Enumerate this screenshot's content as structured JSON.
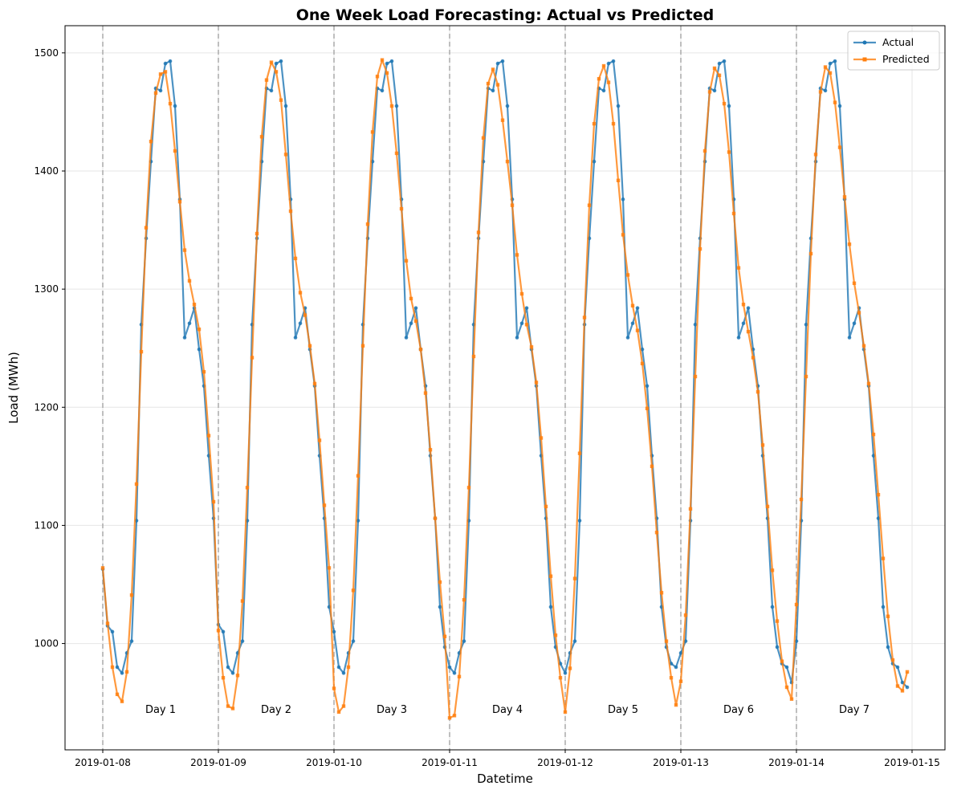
{
  "chart_data": {
    "type": "line",
    "title": "One Week Load Forecasting: Actual vs Predicted",
    "xlabel": "Datetime",
    "ylabel": "Load (MWh)",
    "x_start": "2019-01-08 00:00",
    "x_step": "1 hour",
    "x_ticks": [
      "2019-01-08",
      "2019-01-09",
      "2019-01-10",
      "2019-01-11",
      "2019-01-12",
      "2019-01-13",
      "2019-01-14",
      "2019-01-15"
    ],
    "ylim": [
      910,
      1523
    ],
    "yticks": [
      1000,
      1100,
      1200,
      1300,
      1400,
      1500
    ],
    "grid": true,
    "legend": "top-right",
    "day_markers": [
      "2019-01-08",
      "2019-01-09",
      "2019-01-10",
      "2019-01-11",
      "2019-01-12",
      "2019-01-13",
      "2019-01-14"
    ],
    "day_labels": [
      "Day 1",
      "Day 2",
      "Day 3",
      "Day 4",
      "Day 5",
      "Day 6",
      "Day 7"
    ],
    "series": [
      {
        "name": "Actual",
        "color": "#1f77b4",
        "values": [
          1063,
          1015,
          1010,
          980,
          975,
          992,
          1002,
          1104,
          1270,
          1343,
          1408,
          1470,
          1468,
          1491,
          1493,
          1455,
          1376,
          1259,
          1271,
          1284,
          1249,
          1218,
          1159,
          1106,
          1016,
          1010,
          980,
          975,
          992,
          1002,
          1104,
          1270,
          1343,
          1408,
          1470,
          1468,
          1491,
          1493,
          1455,
          1376,
          1259,
          1271,
          1284,
          1249,
          1218,
          1159,
          1106,
          1031,
          1010,
          980,
          975,
          992,
          1002,
          1104,
          1270,
          1343,
          1408,
          1470,
          1468,
          1491,
          1493,
          1455,
          1376,
          1259,
          1271,
          1284,
          1249,
          1218,
          1159,
          1106,
          1031,
          997,
          980,
          975,
          992,
          1002,
          1104,
          1270,
          1343,
          1408,
          1470,
          1468,
          1491,
          1493,
          1455,
          1376,
          1259,
          1271,
          1284,
          1249,
          1218,
          1159,
          1106,
          1031,
          997,
          983,
          975,
          992,
          1002,
          1104,
          1270,
          1343,
          1408,
          1470,
          1468,
          1491,
          1493,
          1455,
          1376,
          1259,
          1271,
          1284,
          1249,
          1218,
          1159,
          1106,
          1031,
          997,
          983,
          980,
          992,
          1002,
          1104,
          1270,
          1343,
          1408,
          1470,
          1468,
          1491,
          1493,
          1455,
          1376,
          1259,
          1271,
          1284,
          1249,
          1218,
          1159,
          1106,
          1031,
          997,
          983,
          980,
          967,
          1002,
          1104,
          1270,
          1343,
          1408,
          1470,
          1468,
          1491,
          1493,
          1455,
          1376,
          1259,
          1271,
          1284,
          1249,
          1218,
          1159,
          1106,
          1031,
          997,
          983,
          980,
          967,
          963
        ]
      },
      {
        "name": "Predicted",
        "color": "#ff7f0e",
        "values": [
          1064,
          1017,
          980,
          957,
          951,
          976,
          1041,
          1135,
          1247,
          1352,
          1425,
          1466,
          1482,
          1484,
          1457,
          1417,
          1374,
          1333,
          1307,
          1287,
          1266,
          1230,
          1176,
          1120,
          1011,
          971,
          947,
          945,
          973,
          1036,
          1132,
          1242,
          1347,
          1429,
          1477,
          1492,
          1484,
          1460,
          1414,
          1366,
          1326,
          1297,
          1278,
          1252,
          1220,
          1172,
          1117,
          1064,
          962,
          942,
          947,
          980,
          1045,
          1142,
          1252,
          1355,
          1433,
          1480,
          1494,
          1483,
          1455,
          1415,
          1368,
          1324,
          1292,
          1273,
          1249,
          1212,
          1164,
          1106,
          1052,
          1006,
          937,
          939,
          972,
          1037,
          1132,
          1243,
          1348,
          1428,
          1474,
          1486,
          1473,
          1443,
          1408,
          1371,
          1329,
          1296,
          1270,
          1251,
          1221,
          1174,
          1116,
          1057,
          1007,
          971,
          942,
          979,
          1055,
          1161,
          1276,
          1371,
          1440,
          1478,
          1489,
          1475,
          1440,
          1392,
          1346,
          1312,
          1286,
          1265,
          1237,
          1199,
          1150,
          1094,
          1043,
          1002,
          971,
          948,
          968,
          1024,
          1114,
          1226,
          1334,
          1417,
          1467,
          1487,
          1481,
          1457,
          1416,
          1364,
          1318,
          1287,
          1264,
          1242,
          1213,
          1168,
          1116,
          1062,
          1019,
          985,
          963,
          953,
          1033,
          1122,
          1226,
          1330,
          1414,
          1467,
          1488,
          1483,
          1458,
          1420,
          1378,
          1338,
          1305,
          1280,
          1252,
          1220,
          1177,
          1126,
          1072,
          1023,
          986,
          964,
          960,
          976
        ]
      }
    ]
  }
}
